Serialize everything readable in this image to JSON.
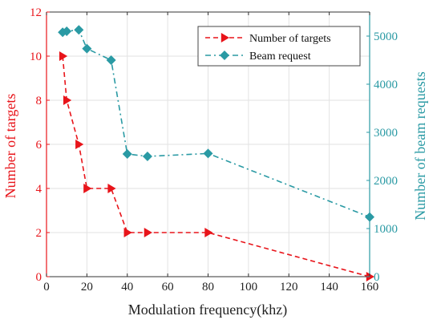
{
  "chart_data": {
    "type": "line",
    "xlabel": "Modulation frequency(khz)",
    "x_ticks": [
      0,
      20,
      40,
      60,
      80,
      100,
      120,
      140,
      160
    ],
    "xlim": [
      0,
      160
    ],
    "y_left": {
      "label": "Number of targets",
      "lim": [
        0,
        12
      ],
      "ticks": [
        0,
        2,
        4,
        6,
        8,
        10,
        12
      ],
      "color": "#e8141a"
    },
    "y_right": {
      "label": "Number of beam requests",
      "lim": [
        0,
        5500
      ],
      "ticks": [
        0,
        1000,
        2000,
        3000,
        4000,
        5000
      ],
      "color": "#2a9aa4"
    },
    "legend": {
      "placement": "top-right"
    },
    "series": [
      {
        "name": "Number of targets",
        "axis": "left",
        "marker": "triangle-right",
        "color": "#e8141a",
        "x": [
          8,
          10,
          16,
          20,
          32,
          40,
          50,
          80,
          160
        ],
        "y": [
          10,
          8,
          6,
          4,
          4,
          2,
          2,
          2,
          0
        ]
      },
      {
        "name": "Beam request",
        "axis": "right",
        "marker": "diamond",
        "color": "#2a9aa4",
        "x": [
          8,
          10,
          16,
          20,
          32,
          40,
          50,
          80,
          160
        ],
        "y": [
          5080,
          5100,
          5130,
          4740,
          4500,
          2550,
          2500,
          2560,
          1240
        ]
      }
    ]
  }
}
